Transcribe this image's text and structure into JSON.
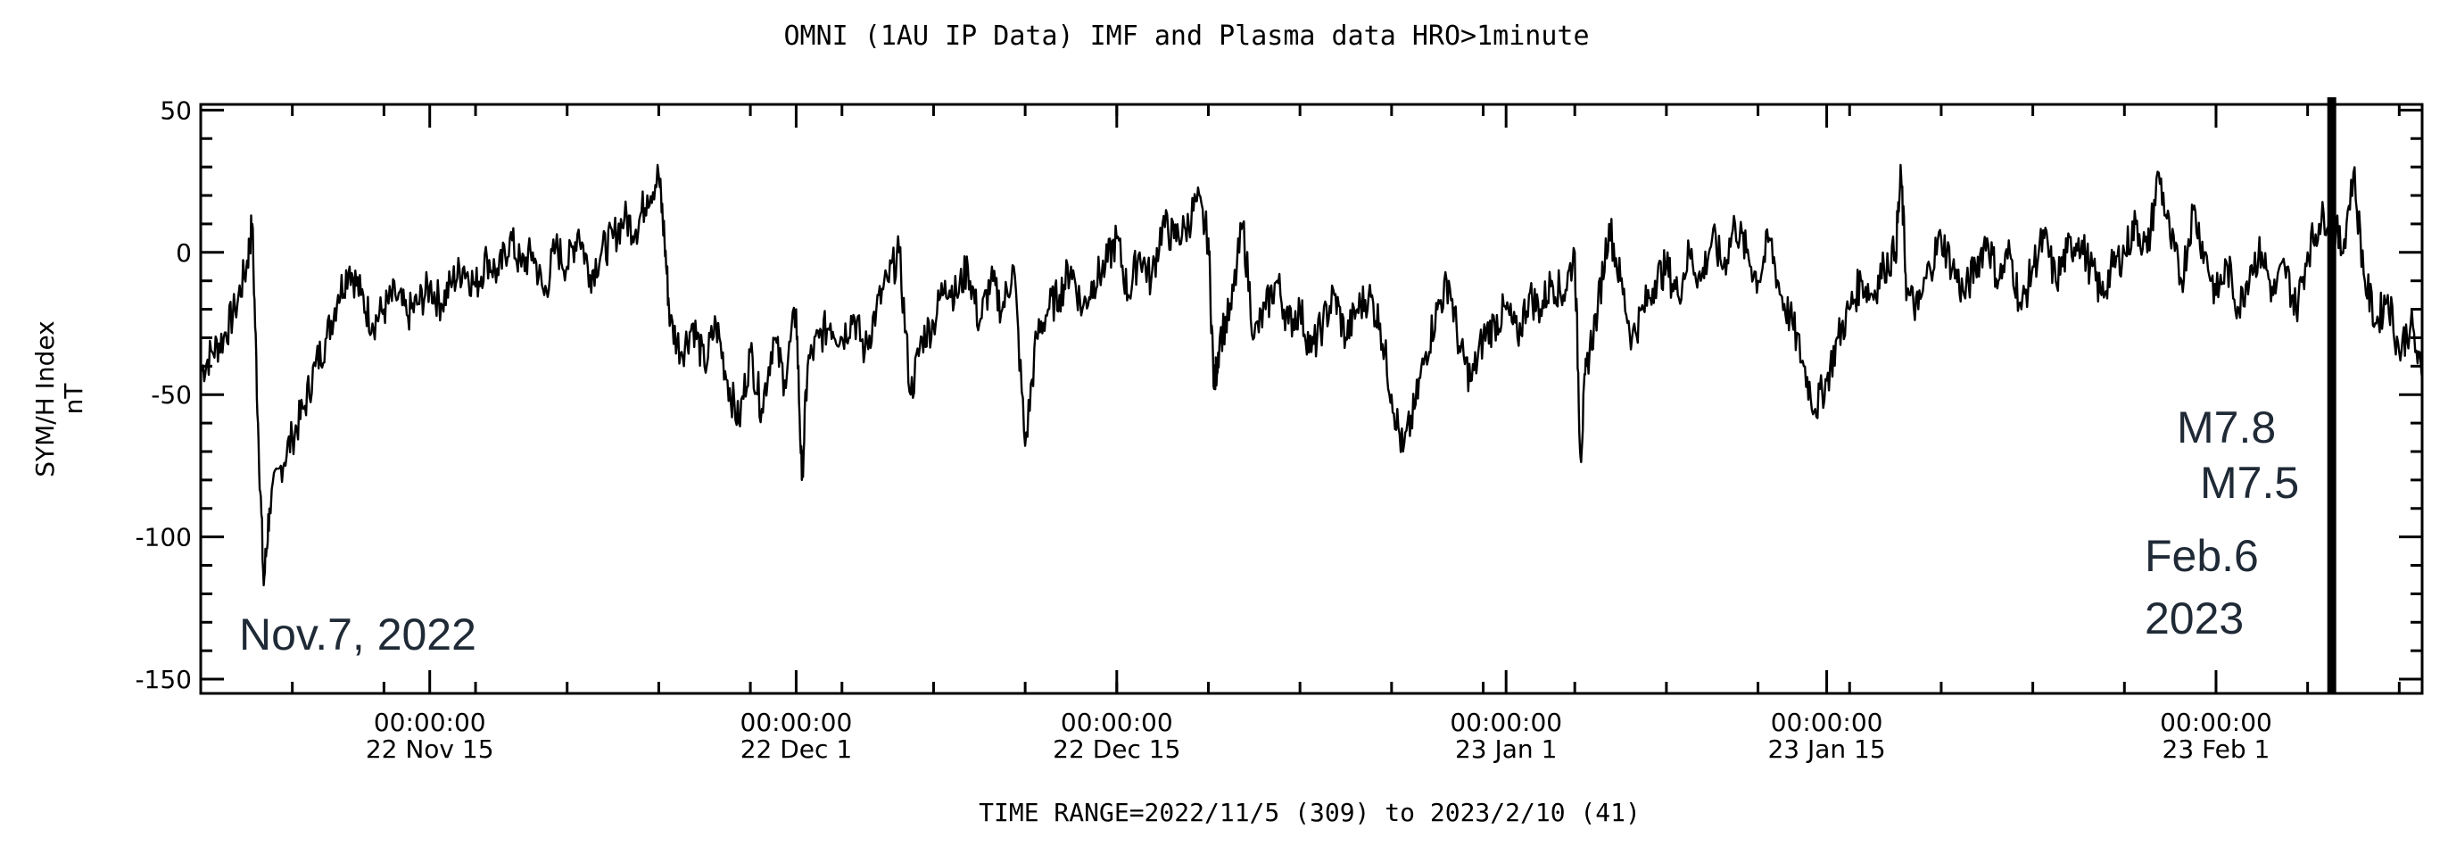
{
  "chart_data": {
    "type": "line",
    "title": "OMNI (1AU IP Data)  IMF and Plasma data  HRO>1minute",
    "ylabel": "SYM/H Index",
    "yunit": "nT",
    "time_range_label": "TIME RANGE=2022/11/5 (309) to 2023/2/10 (41)",
    "x_start": "2022-11-05T00:00:00",
    "x_end": "2023-02-10T00:00:00",
    "ylim": [
      -155,
      52
    ],
    "y_ticks": [
      {
        "value": 50,
        "label": "50"
      },
      {
        "value": 0,
        "label": "0"
      },
      {
        "value": -50,
        "label": "-50"
      },
      {
        "value": -100,
        "label": "-100"
      },
      {
        "value": -150,
        "label": "-150"
      }
    ],
    "x_ticks": [
      {
        "t": "2022-11-15T00:00:00",
        "label1": "00:00:00",
        "label2": "22 Nov 15"
      },
      {
        "t": "2022-12-01T00:00:00",
        "label1": "00:00:00",
        "label2": "22 Dec  1"
      },
      {
        "t": "2022-12-15T00:00:00",
        "label1": "00:00:00",
        "label2": "22 Dec 15"
      },
      {
        "t": "2023-01-01T00:00:00",
        "label1": "00:00:00",
        "label2": "23 Jan  1"
      },
      {
        "t": "2023-01-15T00:00:00",
        "label1": "00:00:00",
        "label2": "23 Jan 15"
      },
      {
        "t": "2023-02-01T00:00:00",
        "label1": "00:00:00",
        "label2": "23 Feb  1"
      }
    ],
    "grid": false,
    "legend": "none",
    "series": [
      {
        "color": "#000000",
        "points": [
          [
            "2022-11-05T00:00",
            -42
          ],
          [
            "2022-11-05T12:00",
            -35
          ],
          [
            "2022-11-06T00:00",
            -30
          ],
          [
            "2022-11-06T12:00",
            -20
          ],
          [
            "2022-11-07T00:00",
            -5
          ],
          [
            "2022-11-07T06:00",
            10
          ],
          [
            "2022-11-07T12:00",
            -60
          ],
          [
            "2022-11-07T18:00",
            -117
          ],
          [
            "2022-11-08T00:00",
            -90
          ],
          [
            "2022-11-08T12:00",
            -75
          ],
          [
            "2022-11-09T00:00",
            -65
          ],
          [
            "2022-11-09T12:00",
            -55
          ],
          [
            "2022-11-10T00:00",
            -40
          ],
          [
            "2022-11-10T12:00",
            -30
          ],
          [
            "2022-11-11T00:00",
            -15
          ],
          [
            "2022-11-11T12:00",
            -5
          ],
          [
            "2022-11-12T00:00",
            -15
          ],
          [
            "2022-11-12T12:00",
            -25
          ],
          [
            "2022-11-13T00:00",
            -20
          ],
          [
            "2022-11-13T12:00",
            -15
          ],
          [
            "2022-11-14T00:00",
            -22
          ],
          [
            "2022-11-14T12:00",
            -18
          ],
          [
            "2022-11-15T00:00",
            -12
          ],
          [
            "2022-11-15T12:00",
            -18
          ],
          [
            "2022-11-16T00:00",
            -10
          ],
          [
            "2022-11-16T12:00",
            -5
          ],
          [
            "2022-11-17T00:00",
            -12
          ],
          [
            "2022-11-17T12:00",
            -2
          ],
          [
            "2022-11-18T00:00",
            -8
          ],
          [
            "2022-11-18T12:00",
            5
          ],
          [
            "2022-11-19T00:00",
            -5
          ],
          [
            "2022-11-19T12:00",
            0
          ],
          [
            "2022-11-20T00:00",
            -15
          ],
          [
            "2022-11-20T12:00",
            2
          ],
          [
            "2022-11-21T00:00",
            -5
          ],
          [
            "2022-11-21T12:00",
            8
          ],
          [
            "2022-11-22T00:00",
            -8
          ],
          [
            "2022-11-22T12:00",
            0
          ],
          [
            "2022-11-23T00:00",
            5
          ],
          [
            "2022-11-23T12:00",
            12
          ],
          [
            "2022-11-24T00:00",
            8
          ],
          [
            "2022-11-24T12:00",
            20
          ],
          [
            "2022-11-25T00:00",
            27
          ],
          [
            "2022-11-25T06:00",
            5
          ],
          [
            "2022-11-25T12:00",
            -25
          ],
          [
            "2022-11-26T00:00",
            -35
          ],
          [
            "2022-11-26T12:00",
            -25
          ],
          [
            "2022-11-27T00:00",
            -40
          ],
          [
            "2022-11-27T12:00",
            -25
          ],
          [
            "2022-11-28T00:00",
            -45
          ],
          [
            "2022-11-28T12:00",
            -60
          ],
          [
            "2022-11-29T00:00",
            -35
          ],
          [
            "2022-11-29T12:00",
            -55
          ],
          [
            "2022-11-30T00:00",
            -30
          ],
          [
            "2022-11-30T12:00",
            -45
          ],
          [
            "2022-12-01T00:00",
            -20
          ],
          [
            "2022-12-01T06:00",
            -80
          ],
          [
            "2022-12-01T12:00",
            -40
          ],
          [
            "2022-12-02T00:00",
            -30
          ],
          [
            "2022-12-02T12:00",
            -25
          ],
          [
            "2022-12-03T00:00",
            -30
          ],
          [
            "2022-12-03T12:00",
            -22
          ],
          [
            "2022-12-04T00:00",
            -35
          ],
          [
            "2022-12-04T12:00",
            -20
          ],
          [
            "2022-12-05T00:00",
            -10
          ],
          [
            "2022-12-05T12:00",
            0
          ],
          [
            "2022-12-06T00:00",
            -50
          ],
          [
            "2022-12-06T12:00",
            -30
          ],
          [
            "2022-12-07T00:00",
            -25
          ],
          [
            "2022-12-07T12:00",
            -10
          ],
          [
            "2022-12-08T00:00",
            -15
          ],
          [
            "2022-12-08T12:00",
            -5
          ],
          [
            "2022-12-09T00:00",
            -25
          ],
          [
            "2022-12-09T12:00",
            -10
          ],
          [
            "2022-12-10T00:00",
            -20
          ],
          [
            "2022-12-10T12:00",
            -5
          ],
          [
            "2022-12-11T00:00",
            -68
          ],
          [
            "2022-12-11T12:00",
            -30
          ],
          [
            "2022-12-12T00:00",
            -20
          ],
          [
            "2022-12-12T12:00",
            -15
          ],
          [
            "2022-12-13T00:00",
            -5
          ],
          [
            "2022-12-13T12:00",
            -20
          ],
          [
            "2022-12-14T00:00",
            -10
          ],
          [
            "2022-12-14T12:00",
            -5
          ],
          [
            "2022-12-15T00:00",
            5
          ],
          [
            "2022-12-15T12:00",
            -15
          ],
          [
            "2022-12-16T00:00",
            0
          ],
          [
            "2022-12-16T12:00",
            -10
          ],
          [
            "2022-12-17T00:00",
            10
          ],
          [
            "2022-12-17T12:00",
            5
          ],
          [
            "2022-12-18T00:00",
            8
          ],
          [
            "2022-12-18T12:00",
            18
          ],
          [
            "2022-12-19T00:00",
            5
          ],
          [
            "2022-12-19T06:00",
            -48
          ],
          [
            "2022-12-19T12:00",
            -30
          ],
          [
            "2022-12-20T00:00",
            -20
          ],
          [
            "2022-12-20T12:00",
            10
          ],
          [
            "2022-12-21T00:00",
            -30
          ],
          [
            "2022-12-21T12:00",
            -20
          ],
          [
            "2022-12-22T00:00",
            -10
          ],
          [
            "2022-12-22T12:00",
            -25
          ],
          [
            "2022-12-23T00:00",
            -20
          ],
          [
            "2022-12-23T12:00",
            -35
          ],
          [
            "2022-12-24T00:00",
            -25
          ],
          [
            "2022-12-24T12:00",
            -15
          ],
          [
            "2022-12-25T00:00",
            -30
          ],
          [
            "2022-12-25T12:00",
            -20
          ],
          [
            "2022-12-26T00:00",
            -15
          ],
          [
            "2022-12-26T12:00",
            -25
          ],
          [
            "2022-12-27T00:00",
            -50
          ],
          [
            "2022-12-27T12:00",
            -70
          ],
          [
            "2022-12-28T00:00",
            -55
          ],
          [
            "2022-12-28T12:00",
            -35
          ],
          [
            "2022-12-29T00:00",
            -20
          ],
          [
            "2022-12-29T12:00",
            -10
          ],
          [
            "2022-12-30T00:00",
            -35
          ],
          [
            "2022-12-30T12:00",
            -45
          ],
          [
            "2022-12-31T00:00",
            -30
          ],
          [
            "2022-12-31T12:00",
            -25
          ],
          [
            "2023-01-01T00:00",
            -20
          ],
          [
            "2023-01-01T12:00",
            -30
          ],
          [
            "2023-01-02T00:00",
            -15
          ],
          [
            "2023-01-02T12:00",
            -20
          ],
          [
            "2023-01-03T00:00",
            -10
          ],
          [
            "2023-01-03T12:00",
            -15
          ],
          [
            "2023-01-04T00:00",
            0
          ],
          [
            "2023-01-04T06:00",
            -72
          ],
          [
            "2023-01-04T12:00",
            -40
          ],
          [
            "2023-01-05T00:00",
            -20
          ],
          [
            "2023-01-05T12:00",
            10
          ],
          [
            "2023-01-06T00:00",
            -10
          ],
          [
            "2023-01-06T12:00",
            -30
          ],
          [
            "2023-01-07T00:00",
            -20
          ],
          [
            "2023-01-07T12:00",
            -10
          ],
          [
            "2023-01-08T00:00",
            -5
          ],
          [
            "2023-01-08T12:00",
            -15
          ],
          [
            "2023-01-09T00:00",
            0
          ],
          [
            "2023-01-09T12:00",
            -10
          ],
          [
            "2023-01-10T00:00",
            5
          ],
          [
            "2023-01-10T12:00",
            -5
          ],
          [
            "2023-01-11T00:00",
            10
          ],
          [
            "2023-01-11T12:00",
            0
          ],
          [
            "2023-01-12T00:00",
            -10
          ],
          [
            "2023-01-12T12:00",
            5
          ],
          [
            "2023-01-13T00:00",
            -15
          ],
          [
            "2023-01-13T12:00",
            -25
          ],
          [
            "2023-01-14T00:00",
            -40
          ],
          [
            "2023-01-14T12:00",
            -55
          ],
          [
            "2023-01-15T00:00",
            -45
          ],
          [
            "2023-01-15T12:00",
            -30
          ],
          [
            "2023-01-16T00:00",
            -20
          ],
          [
            "2023-01-16T12:00",
            -10
          ],
          [
            "2023-01-17T00:00",
            -15
          ],
          [
            "2023-01-17T12:00",
            -5
          ],
          [
            "2023-01-18T00:00",
            0
          ],
          [
            "2023-01-18T06:00",
            27
          ],
          [
            "2023-01-18T12:00",
            -15
          ],
          [
            "2023-01-19T00:00",
            -20
          ],
          [
            "2023-01-19T12:00",
            -5
          ],
          [
            "2023-01-20T00:00",
            5
          ],
          [
            "2023-01-20T12:00",
            -5
          ],
          [
            "2023-01-21T00:00",
            -15
          ],
          [
            "2023-01-21T12:00",
            -5
          ],
          [
            "2023-01-22T00:00",
            5
          ],
          [
            "2023-01-22T12:00",
            -10
          ],
          [
            "2023-01-23T00:00",
            0
          ],
          [
            "2023-01-23T12:00",
            -20
          ],
          [
            "2023-01-24T00:00",
            -5
          ],
          [
            "2023-01-24T12:00",
            5
          ],
          [
            "2023-01-25T00:00",
            -10
          ],
          [
            "2023-01-25T12:00",
            0
          ],
          [
            "2023-01-26T00:00",
            5
          ],
          [
            "2023-01-26T12:00",
            -5
          ],
          [
            "2023-01-27T00:00",
            -15
          ],
          [
            "2023-01-27T12:00",
            -5
          ],
          [
            "2023-01-28T00:00",
            0
          ],
          [
            "2023-01-28T12:00",
            10
          ],
          [
            "2023-01-29T00:00",
            0
          ],
          [
            "2023-01-29T12:00",
            28
          ],
          [
            "2023-01-30T00:00",
            5
          ],
          [
            "2023-01-30T12:00",
            -10
          ],
          [
            "2023-01-31T00:00",
            15
          ],
          [
            "2023-01-31T12:00",
            0
          ],
          [
            "2023-02-01T00:00",
            -15
          ],
          [
            "2023-02-01T12:00",
            -5
          ],
          [
            "2023-02-02T00:00",
            -20
          ],
          [
            "2023-02-02T12:00",
            -5
          ],
          [
            "2023-02-03T00:00",
            0
          ],
          [
            "2023-02-03T12:00",
            -15
          ],
          [
            "2023-02-04T00:00",
            -5
          ],
          [
            "2023-02-04T12:00",
            -20
          ],
          [
            "2023-02-05T00:00",
            0
          ],
          [
            "2023-02-05T12:00",
            10
          ],
          [
            "2023-02-06T00:00",
            15
          ],
          [
            "2023-02-06T12:00",
            0
          ],
          [
            "2023-02-07T00:00",
            28
          ],
          [
            "2023-02-07T12:00",
            -10
          ],
          [
            "2023-02-08T00:00",
            -25
          ],
          [
            "2023-02-08T12:00",
            -15
          ],
          [
            "2023-02-09T00:00",
            -35
          ],
          [
            "2023-02-09T12:00",
            -25
          ],
          [
            "2023-02-10T00:00",
            -45
          ]
        ]
      }
    ],
    "event_marker": {
      "t": "2023-02-06T01:17:00"
    },
    "annotations": [
      {
        "id": "nov7",
        "text": "Nov.7, 2022"
      },
      {
        "id": "m78",
        "text": "M7.8"
      },
      {
        "id": "m75",
        "text": "M7.5"
      },
      {
        "id": "feb6",
        "text": "Feb.6"
      },
      {
        "id": "year",
        "text": "2023"
      }
    ]
  }
}
